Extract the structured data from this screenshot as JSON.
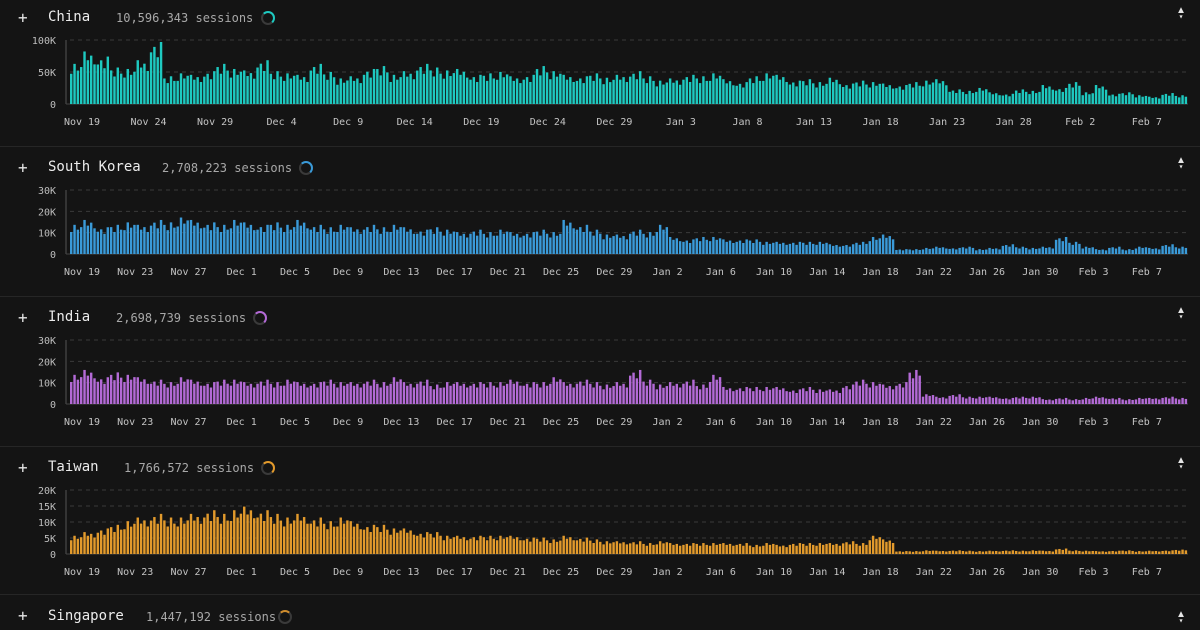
{
  "chart_data": [
    {
      "type": "bar",
      "country": "China",
      "sessions_text": "10,596,343 sessions",
      "color": "#1ec9c0",
      "y_ticks": [
        "100K",
        "50K",
        "0"
      ],
      "ylim": [
        0,
        100000
      ],
      "x_tick_labels": [
        "Nov 19",
        "Nov 24",
        "Nov 29",
        "Dec 4",
        "Dec 9",
        "Dec 14",
        "Dec 19",
        "Dec 24",
        "Dec 29",
        "Jan 3",
        "Jan 8",
        "Jan 13",
        "Jan 18",
        "Jan 23",
        "Jan 28",
        "Feb 2",
        "Feb 7"
      ],
      "x_tick_spacing_days": 5,
      "bars_per_day": 4,
      "num_days": 84,
      "daily_values": [
        55000,
        72000,
        65000,
        50000,
        48000,
        60000,
        85000,
        38000,
        42000,
        40000,
        45000,
        55000,
        48000,
        46000,
        60000,
        45000,
        42000,
        40000,
        55000,
        44000,
        35000,
        38000,
        48000,
        52000,
        40000,
        45000,
        55000,
        50000,
        46000,
        48000,
        40000,
        42000,
        44000,
        38000,
        40000,
        52000,
        45000,
        40000,
        38000,
        42000,
        36000,
        40000,
        45000,
        38000,
        32000,
        35000,
        40000,
        38000,
        42000,
        34000,
        30000,
        38000,
        42000,
        40000,
        32000,
        34000,
        30000,
        36000,
        28000,
        32000,
        30000,
        28000,
        26000,
        30000,
        32000,
        34000,
        20000,
        18000,
        22000,
        16000,
        14000,
        20000,
        18000,
        26000,
        22000,
        30000,
        16000,
        26000,
        14000,
        16000,
        12000,
        10000,
        15000,
        12000
      ]
    },
    {
      "type": "bar",
      "country": "South Korea",
      "sessions_text": "2,708,223 sessions",
      "color": "#3a9ad8",
      "y_ticks": [
        "30K",
        "20K",
        "10K",
        "0"
      ],
      "ylim": [
        0,
        30000
      ],
      "x_tick_labels": [
        "Nov 19",
        "Nov 23",
        "Nov 27",
        "Dec 1",
        "Dec 5",
        "Dec 9",
        "Dec 13",
        "Dec 17",
        "Dec 21",
        "Dec 25",
        "Dec 29",
        "Jan 2",
        "Jan 6",
        "Jan 10",
        "Jan 14",
        "Jan 18",
        "Jan 22",
        "Jan 26",
        "Jan 30",
        "Feb 3",
        "Feb 7"
      ],
      "x_tick_spacing_days": 4,
      "bars_per_day": 4,
      "num_days": 84,
      "daily_values": [
        12000,
        14000,
        11000,
        12000,
        13000,
        12000,
        14000,
        13000,
        15000,
        14000,
        13000,
        12000,
        14000,
        13000,
        12000,
        13000,
        12000,
        14000,
        12000,
        11000,
        12000,
        11000,
        12000,
        11000,
        12000,
        11000,
        10000,
        11000,
        10000,
        9000,
        10000,
        9000,
        10000,
        9000,
        9000,
        10000,
        9000,
        14000,
        12000,
        10000,
        8000,
        8000,
        10000,
        9000,
        12000,
        7000,
        6000,
        7000,
        7000,
        6000,
        6000,
        6000,
        5000,
        5000,
        5000,
        5000,
        5000,
        4000,
        4000,
        5000,
        7000,
        8000,
        2000,
        2000,
        2500,
        3000,
        2500,
        3000,
        2000,
        2500,
        4000,
        3000,
        2500,
        3000,
        7000,
        5000,
        3000,
        2000,
        3000,
        2000,
        3000,
        2500,
        4000,
        3000
      ]
    },
    {
      "type": "bar",
      "country": "India",
      "sessions_text": "2,698,739 sessions",
      "color": "#b36ad6",
      "y_ticks": [
        "30K",
        "20K",
        "10K",
        "0"
      ],
      "ylim": [
        0,
        30000
      ],
      "x_tick_labels": [
        "Nov 19",
        "Nov 23",
        "Nov 27",
        "Dec 1",
        "Dec 5",
        "Dec 9",
        "Dec 13",
        "Dec 17",
        "Dec 21",
        "Dec 25",
        "Dec 29",
        "Jan 2",
        "Jan 6",
        "Jan 10",
        "Jan 14",
        "Jan 18",
        "Jan 22",
        "Jan 26",
        "Jan 30",
        "Feb 3",
        "Feb 7"
      ],
      "x_tick_spacing_days": 4,
      "bars_per_day": 4,
      "num_days": 84,
      "daily_values": [
        12000,
        14000,
        11000,
        13000,
        12000,
        11000,
        10000,
        9000,
        11000,
        10000,
        9000,
        10000,
        10000,
        9000,
        10000,
        9000,
        10000,
        9000,
        9000,
        10000,
        9000,
        9000,
        10000,
        9000,
        11000,
        9000,
        10000,
        8000,
        9000,
        9000,
        9000,
        9000,
        9000,
        10000,
        9000,
        9000,
        11000,
        9000,
        10000,
        9000,
        8000,
        9000,
        14000,
        10000,
        8000,
        9000,
        10000,
        8000,
        12000,
        7000,
        7000,
        7000,
        7000,
        7000,
        6000,
        7000,
        6000,
        6000,
        8000,
        10000,
        9000,
        8000,
        9000,
        14000,
        4000,
        3000,
        4000,
        3000,
        3000,
        3000,
        2500,
        3000,
        3000,
        2000,
        2500,
        2000,
        2500,
        3000,
        2500,
        2000,
        2500,
        2500,
        3000,
        2500
      ]
    },
    {
      "type": "bar",
      "country": "Taiwan",
      "sessions_text": "1,766,572 sessions",
      "color": "#e29a2c",
      "y_ticks": [
        "20K",
        "15K",
        "10K",
        "5K",
        "0"
      ],
      "ylim": [
        0,
        20000
      ],
      "x_tick_labels": [
        "Nov 19",
        "Nov 23",
        "Nov 27",
        "Dec 1",
        "Dec 5",
        "Dec 9",
        "Dec 13",
        "Dec 17",
        "Dec 21",
        "Dec 25",
        "Dec 29",
        "Jan 2",
        "Jan 6",
        "Jan 10",
        "Jan 14",
        "Jan 18",
        "Jan 22",
        "Jan 26",
        "Jan 30",
        "Feb 3",
        "Feb 7"
      ],
      "x_tick_spacing_days": 4,
      "bars_per_day": 4,
      "num_days": 84,
      "daily_values": [
        5000,
        6000,
        7000,
        8000,
        9000,
        10000,
        11000,
        10000,
        10000,
        11000,
        12000,
        11000,
        12000,
        13000,
        12000,
        11000,
        10000,
        11000,
        10000,
        9000,
        10000,
        9000,
        8000,
        8000,
        7000,
        7000,
        6000,
        6000,
        5000,
        5000,
        5000,
        5000,
        5000,
        5000,
        4500,
        4500,
        4000,
        5000,
        4500,
        4000,
        3500,
        3500,
        3500,
        3000,
        3500,
        3000,
        3000,
        3000,
        3000,
        3000,
        3000,
        2500,
        3000,
        2500,
        3000,
        3000,
        3000,
        3000,
        3500,
        3000,
        5000,
        4000,
        800,
        800,
        1000,
        900,
        1000,
        900,
        800,
        900,
        1000,
        900,
        1000,
        900,
        1500,
        1000,
        900,
        800,
        900,
        1000,
        800,
        900,
        1000,
        1200
      ]
    }
  ],
  "partial_row": {
    "country": "Singapore",
    "sessions_text": "1,447,192 sessions"
  },
  "ui": {
    "expand_glyph": "+"
  }
}
